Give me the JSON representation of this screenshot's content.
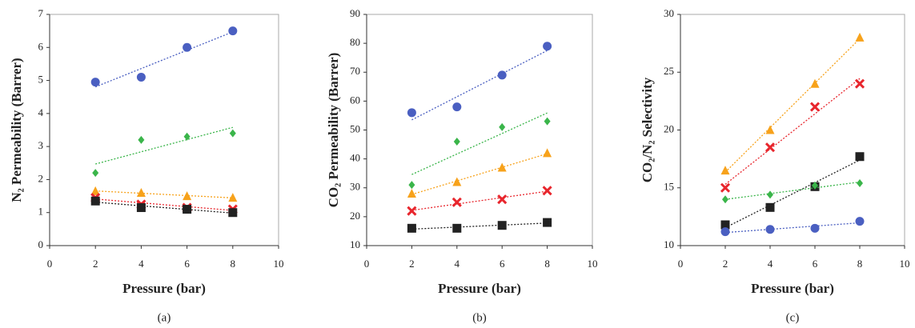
{
  "chart_data": [
    {
      "type": "scatter",
      "x_label": "Pressure (bar)",
      "y_label": "N₂ Permeability (Barrer)",
      "caption": "(a)",
      "x": [
        2,
        4,
        6,
        8
      ],
      "xlim": [
        0,
        10
      ],
      "xticks": [
        0,
        2,
        4,
        6,
        8,
        10
      ],
      "ylim": [
        0,
        7
      ],
      "yticks": [
        0,
        1,
        2,
        3,
        4,
        5,
        6,
        7
      ],
      "trendline": true,
      "series": [
        {
          "color": "#4a5fc1",
          "marker": "circle",
          "values": [
            4.95,
            5.1,
            6.0,
            6.5
          ]
        },
        {
          "color": "#3ab54a",
          "marker": "diamond",
          "values": [
            2.2,
            3.2,
            3.3,
            3.4
          ]
        },
        {
          "color": "#f7a21b",
          "marker": "triangle",
          "values": [
            1.65,
            1.6,
            1.5,
            1.45
          ]
        },
        {
          "color": "#e8262d",
          "marker": "cross",
          "values": [
            1.45,
            1.25,
            1.15,
            1.1
          ]
        },
        {
          "color": "#222222",
          "marker": "square",
          "values": [
            1.35,
            1.15,
            1.1,
            1.0
          ]
        }
      ]
    },
    {
      "type": "scatter",
      "x_label": "Pressure (bar)",
      "y_label": "CO₂ Permeability (Barrer)",
      "caption": "(b)",
      "x": [
        2,
        4,
        6,
        8
      ],
      "xlim": [
        0,
        10
      ],
      "xticks": [
        0,
        2,
        4,
        6,
        8,
        10
      ],
      "ylim": [
        10,
        90
      ],
      "yticks": [
        10,
        20,
        30,
        40,
        50,
        60,
        70,
        80,
        90
      ],
      "trendline": true,
      "series": [
        {
          "color": "#4a5fc1",
          "marker": "circle",
          "values": [
            56,
            58,
            69,
            79
          ]
        },
        {
          "color": "#3ab54a",
          "marker": "diamond",
          "values": [
            31,
            46,
            51,
            53
          ]
        },
        {
          "color": "#f7a21b",
          "marker": "triangle",
          "values": [
            28,
            32,
            37,
            42
          ]
        },
        {
          "color": "#e8262d",
          "marker": "cross",
          "values": [
            22,
            25,
            26,
            29
          ]
        },
        {
          "color": "#222222",
          "marker": "square",
          "values": [
            16,
            16,
            17,
            18
          ]
        }
      ]
    },
    {
      "type": "scatter",
      "x_label": "Pressure (bar)",
      "y_label": "CO₂/N₂ Selectivity",
      "caption": "(c)",
      "x": [
        2,
        4,
        6,
        8
      ],
      "xlim": [
        0,
        10
      ],
      "xticks": [
        0,
        2,
        4,
        6,
        8,
        10
      ],
      "ylim": [
        10,
        30
      ],
      "yticks": [
        10,
        15,
        20,
        25,
        30
      ],
      "trendline": true,
      "series": [
        {
          "color": "#f7a21b",
          "marker": "triangle",
          "values": [
            16.5,
            20,
            24,
            28
          ]
        },
        {
          "color": "#e8262d",
          "marker": "cross",
          "values": [
            15,
            18.5,
            22,
            24
          ]
        },
        {
          "color": "#222222",
          "marker": "square",
          "values": [
            11.8,
            13.3,
            15.1,
            17.7
          ]
        },
        {
          "color": "#3ab54a",
          "marker": "diamond",
          "values": [
            14,
            14.4,
            15.2,
            15.4
          ]
        },
        {
          "color": "#4a5fc1",
          "marker": "circle",
          "values": [
            11.2,
            11.4,
            11.5,
            12.1
          ]
        }
      ]
    }
  ]
}
